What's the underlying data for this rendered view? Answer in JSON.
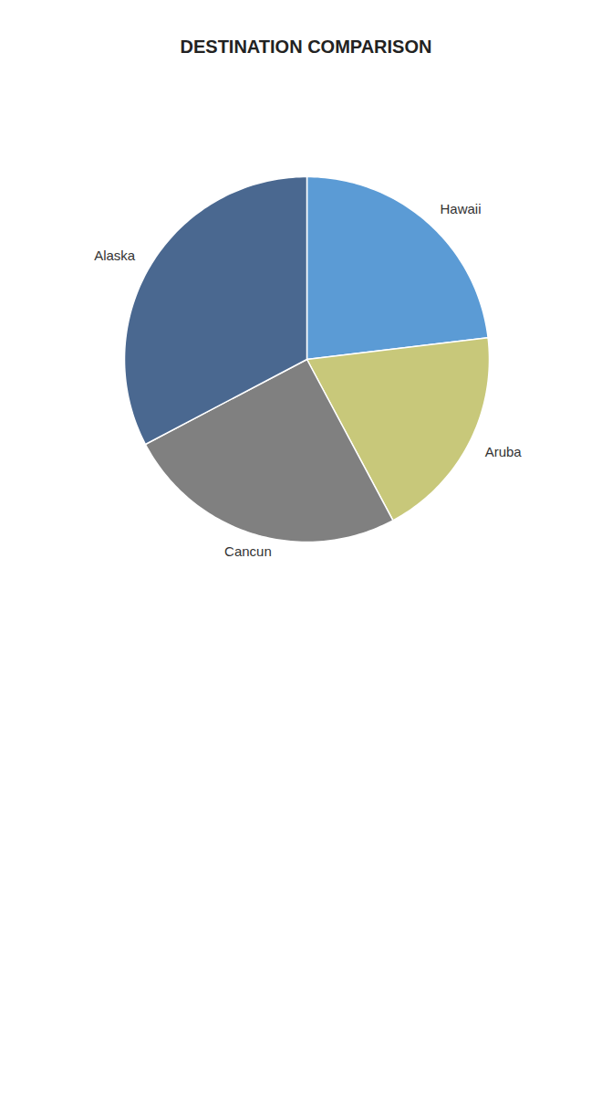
{
  "chart_data": {
    "type": "pie",
    "title": "DESTINATION COMPARISON",
    "categories": [
      "Hawaii",
      "Aruba",
      "Cancun",
      "Alaska"
    ],
    "values": [
      13622,
      11248,
      14816,
      19279
    ],
    "colors": [
      "#5b9bd5",
      "#c8c87a",
      "#808080",
      "#4a6890"
    ]
  }
}
